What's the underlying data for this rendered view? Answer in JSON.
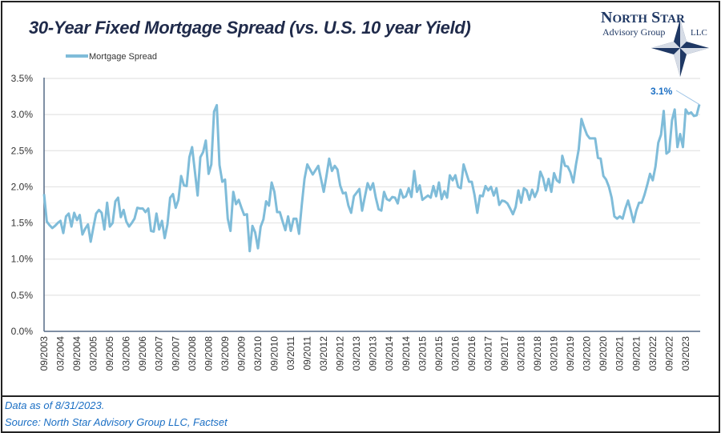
{
  "chart_data": {
    "type": "line",
    "title": "30-Year Fixed Mortgage Spread (vs. U.S. 10 year Yield)",
    "x_start": "09/2003",
    "x_end": "08/2023",
    "frequency": "monthly",
    "ylim": [
      0,
      3.5
    ],
    "y_unit": "%",
    "y_ticks": [
      "0.0%",
      "0.5%",
      "1.0%",
      "1.5%",
      "2.0%",
      "2.5%",
      "3.0%",
      "3.5%"
    ],
    "x_ticks": [
      "09/2003",
      "03/2004",
      "09/2004",
      "03/2005",
      "09/2005",
      "03/2006",
      "09/2006",
      "03/2007",
      "09/2007",
      "03/2008",
      "09/2008",
      "03/2009",
      "09/2009",
      "03/2010",
      "09/2010",
      "03/2011",
      "09/2011",
      "03/2012",
      "09/2012",
      "03/2013",
      "09/2013",
      "03/2014",
      "09/2014",
      "03/2015",
      "09/2015",
      "03/2016",
      "09/2016",
      "03/2017",
      "09/2017",
      "03/2018",
      "09/2018",
      "03/2019",
      "09/2019",
      "03/2020",
      "09/2020",
      "03/2021",
      "09/2021",
      "03/2022",
      "09/2022",
      "03/2023"
    ],
    "grid": "horizontal",
    "legend_placement": "top-left",
    "series": [
      {
        "name": "Mortgage Spread",
        "color": "#7fbcd9",
        "values": [
          1.9,
          1.52,
          1.47,
          1.43,
          1.46,
          1.5,
          1.53,
          1.36,
          1.59,
          1.63,
          1.45,
          1.64,
          1.54,
          1.61,
          1.34,
          1.42,
          1.48,
          1.24,
          1.44,
          1.63,
          1.68,
          1.64,
          1.41,
          1.78,
          1.45,
          1.5,
          1.8,
          1.85,
          1.58,
          1.68,
          1.52,
          1.45,
          1.5,
          1.56,
          1.71,
          1.7,
          1.7,
          1.65,
          1.7,
          1.39,
          1.38,
          1.63,
          1.41,
          1.53,
          1.29,
          1.48,
          1.85,
          1.9,
          1.71,
          1.82,
          2.15,
          2.02,
          2.01,
          2.41,
          2.55,
          2.22,
          1.88,
          2.41,
          2.48,
          2.64,
          2.18,
          2.31,
          3.04,
          3.13,
          2.3,
          2.07,
          2.1,
          1.56,
          1.39,
          1.93,
          1.76,
          1.82,
          1.71,
          1.61,
          1.62,
          1.11,
          1.46,
          1.37,
          1.15,
          1.45,
          1.55,
          1.8,
          1.74,
          2.06,
          1.93,
          1.65,
          1.65,
          1.52,
          1.4,
          1.59,
          1.39,
          1.56,
          1.56,
          1.35,
          1.75,
          2.11,
          2.31,
          2.24,
          2.17,
          2.23,
          2.29,
          2.11,
          1.93,
          2.15,
          2.39,
          2.22,
          2.29,
          2.24,
          2.02,
          1.91,
          1.92,
          1.74,
          1.64,
          1.87,
          1.92,
          1.97,
          1.67,
          1.86,
          2.05,
          1.96,
          2.05,
          1.85,
          1.69,
          1.67,
          1.93,
          1.83,
          1.81,
          1.86,
          1.85,
          1.77,
          1.96,
          1.85,
          1.87,
          1.98,
          1.86,
          2.22,
          1.93,
          2.02,
          1.82,
          1.85,
          1.88,
          1.85,
          2.01,
          1.87,
          2.06,
          1.83,
          1.94,
          1.85,
          2.16,
          2.09,
          2.16,
          2.0,
          1.98,
          2.31,
          2.19,
          2.07,
          2.07,
          1.89,
          1.64,
          1.88,
          1.87,
          2.01,
          1.95,
          2.0,
          1.88,
          1.98,
          1.75,
          1.81,
          1.8,
          1.77,
          1.7,
          1.62,
          1.72,
          1.95,
          1.78,
          1.98,
          1.95,
          1.82,
          1.96,
          1.86,
          1.95,
          2.21,
          2.12,
          1.95,
          2.11,
          1.93,
          2.19,
          2.09,
          2.06,
          2.43,
          2.29,
          2.28,
          2.2,
          2.06,
          2.31,
          2.52,
          2.94,
          2.82,
          2.72,
          2.67,
          2.67,
          2.67,
          2.4,
          2.39,
          2.15,
          2.1,
          2.0,
          1.85,
          1.59,
          1.56,
          1.59,
          1.56,
          1.7,
          1.81,
          1.67,
          1.51,
          1.67,
          1.78,
          1.78,
          1.89,
          2.03,
          2.18,
          2.09,
          2.28,
          2.61,
          2.72,
          3.05,
          2.46,
          2.49,
          2.92,
          3.07,
          2.55,
          2.73,
          2.55,
          3.07,
          3.01,
          3.03,
          2.98,
          2.99,
          3.14
        ]
      }
    ],
    "annotations": [
      {
        "text": "3.1%",
        "color": "#1b6fc4",
        "target": "last-point"
      }
    ]
  },
  "logo": {
    "line1": "NORTH STAR",
    "line2": "Advisory Group",
    "line3": "LLC",
    "color": "#1f3864"
  },
  "footer": {
    "data_as_of": "Data as of 8/31/2023.",
    "source": "Source: North Star Advisory Group LLC, Factset"
  }
}
